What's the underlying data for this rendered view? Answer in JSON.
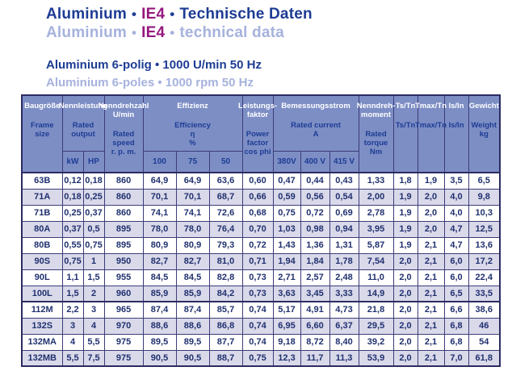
{
  "colors": {
    "title_blue": "#1d3c94",
    "title_light_blue": "#a6b2dd",
    "ie4_magenta": "#95187f",
    "header_bg": "#7d8ec5",
    "row_stripe": "#d9d9ea",
    "data_text": "#20306f",
    "border": "#2c2c62"
  },
  "titles": {
    "line1": {
      "part1": "Aluminium",
      "bullet1": "•",
      "ie4": "IE4",
      "bullet2": "•",
      "part2": "Technische Daten"
    },
    "line2": {
      "part1": "Aluminium",
      "bullet1": "•",
      "ie4": "IE4",
      "bullet2": "•",
      "part2": "technical data"
    },
    "line3": "Aluminium 6-polig • 1000 U/min 50 Hz",
    "line4": "Aluminium 6-poles • 1000 rpm 50 Hz"
  },
  "table": {
    "columns": [
      {
        "id": "frame",
        "de": "Baugröße",
        "en": "Frame size"
      },
      {
        "id": "output",
        "de": "Nennleistung",
        "en": "Rated output",
        "subs": [
          "kW",
          "HP"
        ]
      },
      {
        "id": "speed",
        "de": "Nenndrehzahl\nU/min",
        "en": "Rated speed\nr. p. m."
      },
      {
        "id": "efficiency",
        "de": "Effizienz",
        "en": "Efficiency\nη\n%",
        "subs": [
          "100",
          "75",
          "50"
        ]
      },
      {
        "id": "powerfactor",
        "de": "Leistungs-\nfaktor",
        "en": "Power\nfactor\ncos phi"
      },
      {
        "id": "current",
        "de": "Bemessungsstrom",
        "en": "Rated current\nA",
        "subs": [
          "380V",
          "400 V",
          "415 V"
        ]
      },
      {
        "id": "torque",
        "de": "Nenndreh-\nmoment",
        "en": "Rated\ntorque\nNm"
      },
      {
        "id": "ts_tn",
        "de": "Ts/Tn",
        "en": "Ts/Tn"
      },
      {
        "id": "tmax_tn",
        "de": "Tmax/Tn",
        "en": "Tmax/Tn"
      },
      {
        "id": "is_in",
        "de": "Is/In",
        "en": "Is/In"
      },
      {
        "id": "weight",
        "de": "Gewicht",
        "en": "Weight\nkg"
      }
    ],
    "rows": [
      [
        "63B",
        "0,12",
        "0,18",
        "860",
        "64,9",
        "64,9",
        "63,6",
        "0,60",
        "0,47",
        "0,44",
        "0,43",
        "1,33",
        "1,8",
        "1,9",
        "3,5",
        "6,5"
      ],
      [
        "71A",
        "0,18",
        "0,25",
        "860",
        "70,1",
        "70,1",
        "68,7",
        "0,66",
        "0,59",
        "0,56",
        "0,54",
        "2,00",
        "1,9",
        "2,0",
        "4,0",
        "9,8"
      ],
      [
        "71B",
        "0,25",
        "0,37",
        "860",
        "74,1",
        "74,1",
        "72,6",
        "0,68",
        "0,75",
        "0,72",
        "0,69",
        "2,78",
        "1,9",
        "2,0",
        "4,0",
        "10,3"
      ],
      [
        "80A",
        "0,37",
        "0,5",
        "895",
        "78,0",
        "78,0",
        "76,4",
        "0,70",
        "1,03",
        "0,98",
        "0,94",
        "3,95",
        "1,9",
        "2,0",
        "4,7",
        "12,5"
      ],
      [
        "80B",
        "0,55",
        "0,75",
        "895",
        "80,9",
        "80,9",
        "79,3",
        "0,72",
        "1,43",
        "1,36",
        "1,31",
        "5,87",
        "1,9",
        "2,1",
        "4,7",
        "13,6"
      ],
      [
        "90S",
        "0,75",
        "1",
        "950",
        "82,7",
        "82,7",
        "81,0",
        "0,71",
        "1,94",
        "1,84",
        "1,78",
        "7,54",
        "2,0",
        "2,1",
        "6,0",
        "17,2"
      ],
      [
        "90L",
        "1,1",
        "1,5",
        "955",
        "84,5",
        "84,5",
        "82,8",
        "0,73",
        "2,71",
        "2,57",
        "2,48",
        "11,0",
        "2,0",
        "2,1",
        "6,0",
        "22,4"
      ],
      [
        "100L",
        "1,5",
        "2",
        "960",
        "85,9",
        "85,9",
        "84,2",
        "0,73",
        "3,63",
        "3,45",
        "3,33",
        "14,9",
        "2,0",
        "2,1",
        "6,5",
        "33,5"
      ],
      [
        "112M",
        "2,2",
        "3",
        "965",
        "87,4",
        "87,4",
        "85,7",
        "0,74",
        "5,17",
        "4,91",
        "4,73",
        "21,8",
        "2,0",
        "2,1",
        "6,6",
        "38,6"
      ],
      [
        "132S",
        "3",
        "4",
        "970",
        "88,6",
        "88,6",
        "86,8",
        "0,74",
        "6,95",
        "6,60",
        "6,37",
        "29,5",
        "2,0",
        "2,1",
        "6,8",
        "46"
      ],
      [
        "132MA",
        "4",
        "5,5",
        "975",
        "89,5",
        "89,5",
        "87,7",
        "0,74",
        "9,18",
        "8,72",
        "8,40",
        "39,2",
        "2,0",
        "2,1",
        "6,8",
        "54"
      ],
      [
        "132MB",
        "5,5",
        "7,5",
        "975",
        "90,5",
        "90,5",
        "88,7",
        "0,75",
        "12,3",
        "11,7",
        "11,3",
        "53,9",
        "2,0",
        "2,1",
        "7,0",
        "61,8"
      ]
    ]
  }
}
